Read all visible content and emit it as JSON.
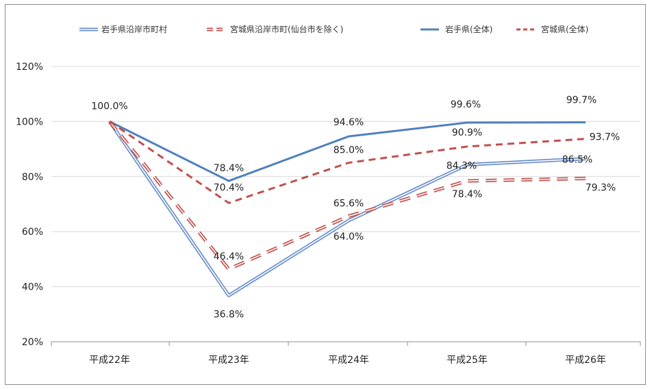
{
  "chart_data": {
    "type": "line",
    "categories": [
      "平成22年",
      "平成23年",
      "平成24年",
      "平成25年",
      "平成26年"
    ],
    "ylim": [
      20,
      120
    ],
    "yticks": [
      "20%",
      "40%",
      "60%",
      "80%",
      "100%",
      "120%"
    ],
    "ytick_values": [
      20,
      40,
      60,
      80,
      100,
      120
    ],
    "grid": "horizontal",
    "legend_position": "top",
    "series": [
      {
        "name": "岩手県沿岸市町村",
        "values": [
          100.0,
          36.8,
          64.0,
          84.3,
          86.5
        ],
        "labels": [
          "",
          "36.8%",
          "64.0%",
          "84.3%",
          "86.5%"
        ],
        "color": "#6b8fc9",
        "style": "double"
      },
      {
        "name": "宮城県沿岸市町(仙台市を除く)",
        "values": [
          100.0,
          46.4,
          65.6,
          78.4,
          79.3
        ],
        "labels": [
          "",
          "46.4%",
          "65.6%",
          "78.4%",
          "79.3%"
        ],
        "color": "#c0504d",
        "style": "double-dash"
      },
      {
        "name": "岩手県(全体)",
        "values": [
          100.0,
          78.4,
          94.6,
          99.6,
          99.7
        ],
        "labels": [
          "100.0%",
          "78.4%",
          "94.6%",
          "99.6%",
          "99.7%"
        ],
        "color": "#4f81bd",
        "style": "solid"
      },
      {
        "name": "宮城県(全体)",
        "values": [
          100.0,
          70.4,
          85.0,
          90.9,
          93.7
        ],
        "labels": [
          "",
          "70.4%",
          "85.0%",
          "90.9%",
          "93.7%"
        ],
        "color": "#c0504d",
        "style": "dash"
      }
    ]
  }
}
